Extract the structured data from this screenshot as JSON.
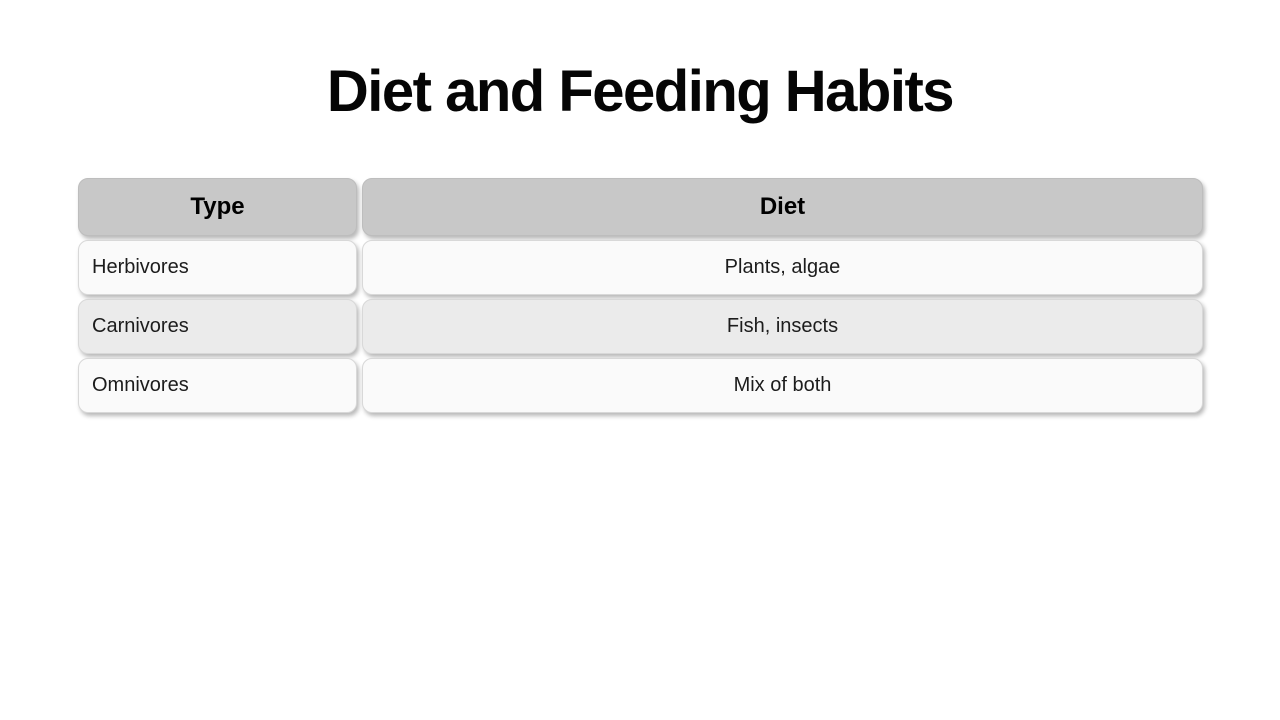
{
  "page": {
    "background": "#ffffff",
    "title": "Diet and Feeding Habits"
  },
  "table": {
    "columns": [
      {
        "label": "Type"
      },
      {
        "label": "Diet"
      }
    ],
    "rows": [
      {
        "type": "Herbivores",
        "diet": "Plants, algae"
      },
      {
        "type": "Carnivores",
        "diet": "Fish, insects"
      },
      {
        "type": "Omnivores",
        "diet": "Mix of both"
      }
    ],
    "colors": {
      "header_bg": "#c8c8c8",
      "row_odd_bg": "#fafafa",
      "row_even_bg": "#ebebeb",
      "text": "#1c1c1c"
    }
  }
}
